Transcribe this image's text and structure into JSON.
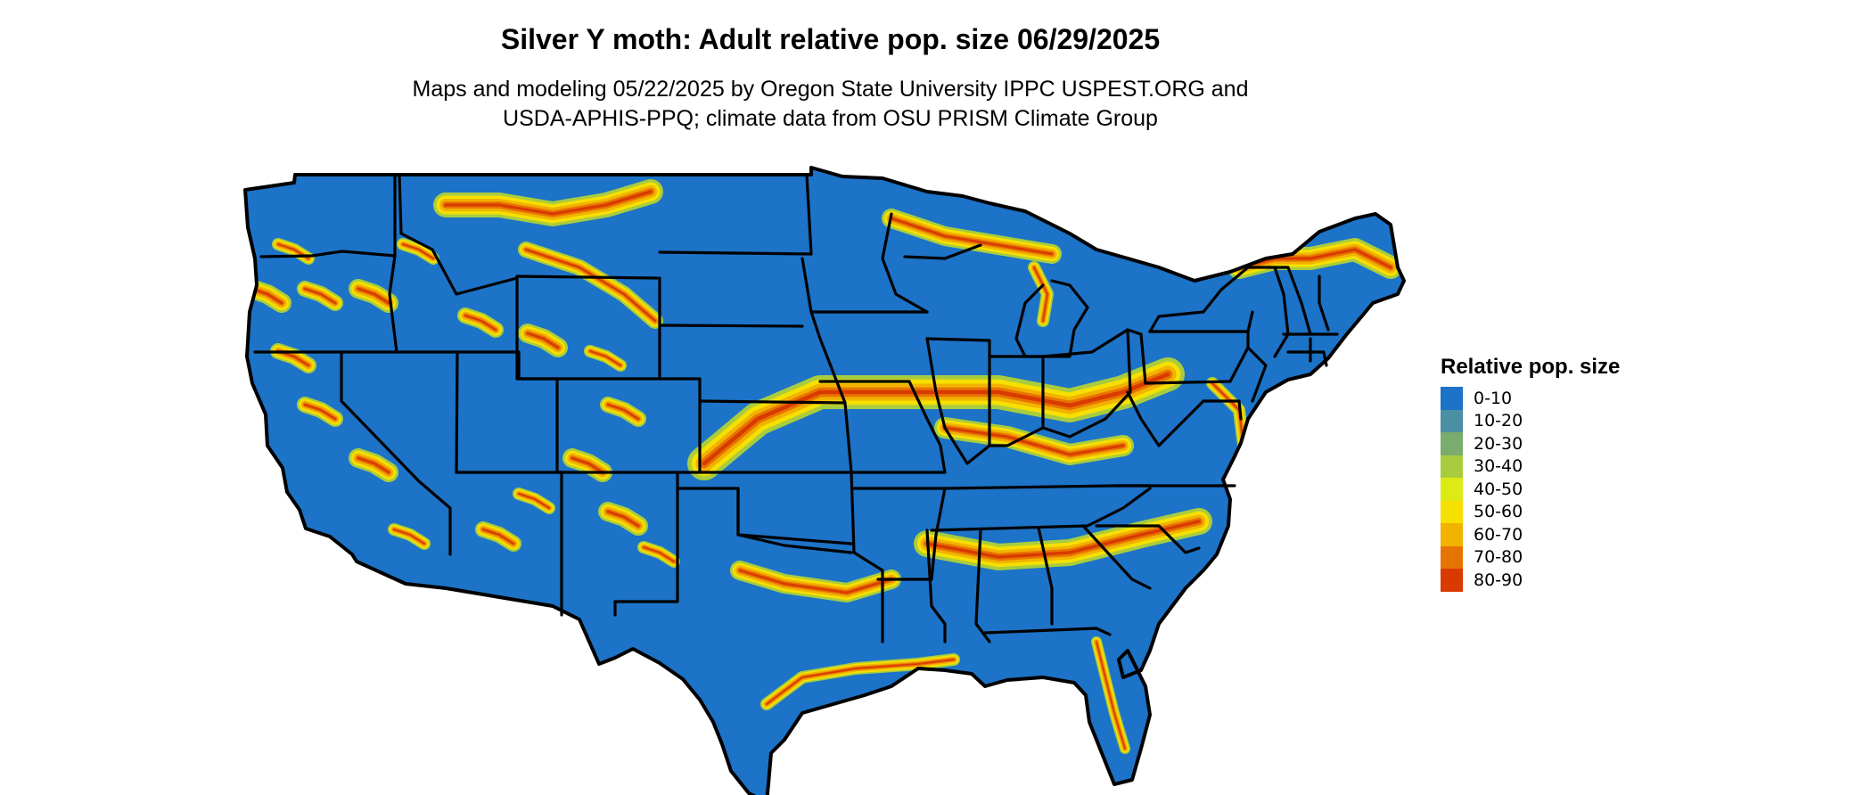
{
  "map": {
    "title": "Silver Y moth: Adult relative pop. size 06/29/2025",
    "subtitle_lines": [
      "Maps and modeling 05/22/2025 by Oregon State University IPPC USPEST.ORG and",
      "USDA-APHIS-PPQ; climate data from OSU PRISM Climate Group"
    ],
    "region": "Contiguous United States",
    "legend": {
      "title": "Relative pop. size",
      "items": [
        {
          "label": "0-10",
          "color": "#1c73c7"
        },
        {
          "label": "10-20",
          "color": "#4a8fa2"
        },
        {
          "label": "20-30",
          "color": "#7aac6e"
        },
        {
          "label": "30-40",
          "color": "#a9cc3e"
        },
        {
          "label": "40-50",
          "color": "#dceb16"
        },
        {
          "label": "50-60",
          "color": "#f6e000"
        },
        {
          "label": "60-70",
          "color": "#f2b200"
        },
        {
          "label": "70-80",
          "color": "#e77400"
        },
        {
          "label": "80-90",
          "color": "#d93a00"
        }
      ]
    },
    "border_color": "#000000"
  }
}
